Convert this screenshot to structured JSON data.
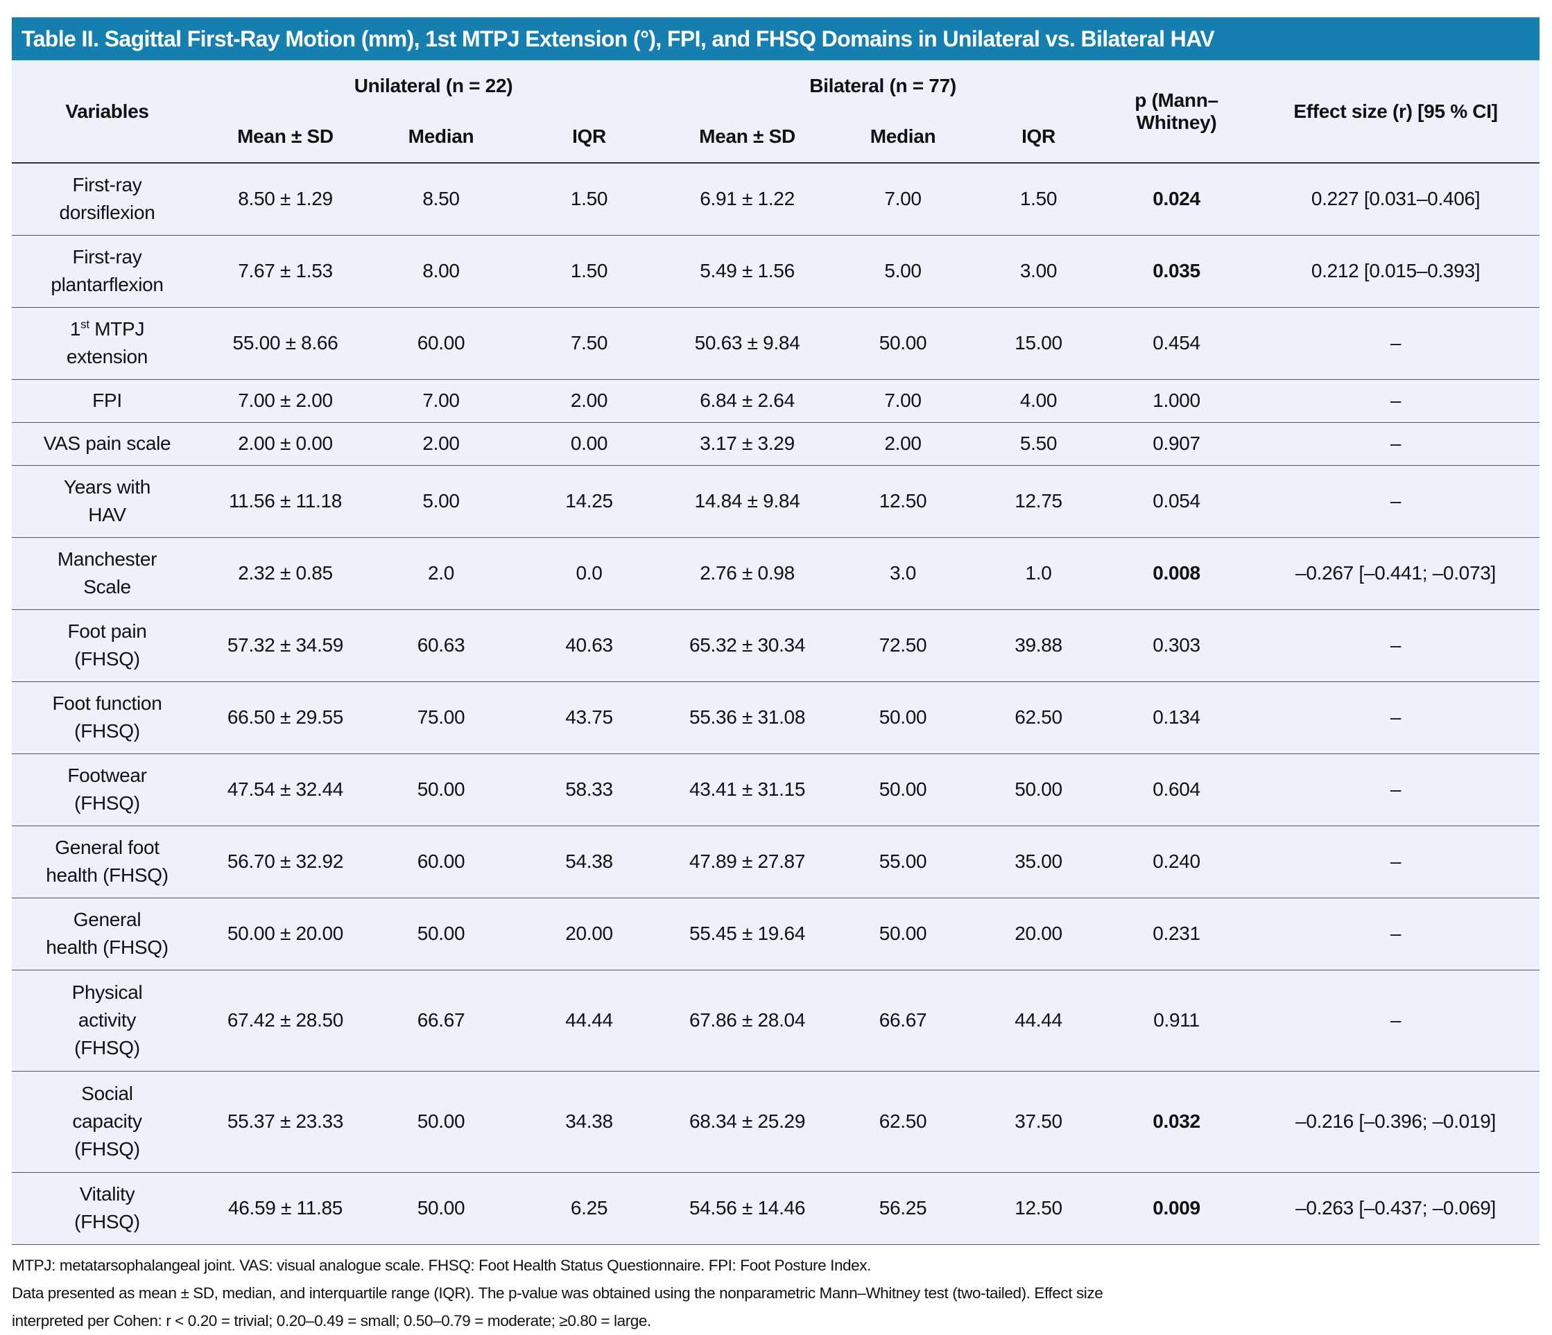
{
  "title": "Table II. Sagittal First-Ray Motion (mm), 1st MTPJ Extension (°), FPI, and FHSQ Domains in Unilateral vs. Bilateral HAV",
  "header": {
    "variables": "Variables",
    "unilateral": "Unilateral (n = 22)",
    "bilateral": "Bilateral (n = 77)",
    "p_line1": "p (Mann–",
    "p_line2": "Whitney)",
    "effect": "Effect size (r) [95 % CI]",
    "mean_sd": "Mean ± SD",
    "median": "Median",
    "iqr": "IQR"
  },
  "rows": [
    {
      "label": [
        "First-ray",
        "dorsiflexion"
      ],
      "u_mean": "8.50 ± 1.29",
      "u_median": "8.50",
      "u_iqr": "1.50",
      "b_mean": "6.91 ± 1.22",
      "b_median": "7.00",
      "b_iqr": "1.50",
      "p": "0.024",
      "p_bold": true,
      "effect": "0.227 [0.031–0.406]"
    },
    {
      "label": [
        "First-ray",
        "plantarflexion"
      ],
      "u_mean": "7.67 ± 1.53",
      "u_median": "8.00",
      "u_iqr": "1.50",
      "b_mean": "5.49 ± 1.56",
      "b_median": "5.00",
      "b_iqr": "3.00",
      "p": "0.035",
      "p_bold": true,
      "effect": "0.212 [0.015–0.393]"
    },
    {
      "label": [
        "1",
        "MTPJ",
        "extension"
      ],
      "ordinal_suffix": "st",
      "u_mean": "55.00 ± 8.66",
      "u_median": "60.00",
      "u_iqr": "7.50",
      "b_mean": "50.63 ± 9.84",
      "b_median": "50.00",
      "b_iqr": "15.00",
      "p": "0.454",
      "p_bold": false,
      "effect": "–"
    },
    {
      "label": [
        "FPI"
      ],
      "u_mean": "7.00 ± 2.00",
      "u_median": "7.00",
      "u_iqr": "2.00",
      "b_mean": "6.84 ± 2.64",
      "b_median": "7.00",
      "b_iqr": "4.00",
      "p": "1.000",
      "p_bold": false,
      "effect": "–"
    },
    {
      "label": [
        "VAS pain scale"
      ],
      "u_mean": "2.00 ± 0.00",
      "u_median": "2.00",
      "u_iqr": "0.00",
      "b_mean": "3.17 ± 3.29",
      "b_median": "2.00",
      "b_iqr": "5.50",
      "p": "0.907",
      "p_bold": false,
      "effect": "–"
    },
    {
      "label": [
        "Years with",
        "HAV"
      ],
      "u_mean": "11.56 ± 11.18",
      "u_median": "5.00",
      "u_iqr": "14.25",
      "b_mean": "14.84 ± 9.84",
      "b_median": "12.50",
      "b_iqr": "12.75",
      "p": "0.054",
      "p_bold": false,
      "effect": "–"
    },
    {
      "label": [
        "Manchester",
        "Scale"
      ],
      "u_mean": "2.32 ± 0.85",
      "u_median": "2.0",
      "u_iqr": "0.0",
      "b_mean": "2.76 ± 0.98",
      "b_median": "3.0",
      "b_iqr": "1.0",
      "p": "0.008",
      "p_bold": true,
      "effect": "–0.267 [–0.441; –0.073]"
    },
    {
      "label": [
        "Foot pain",
        "(FHSQ)"
      ],
      "u_mean": "57.32 ± 34.59",
      "u_median": "60.63",
      "u_iqr": "40.63",
      "b_mean": "65.32 ± 30.34",
      "b_median": "72.50",
      "b_iqr": "39.88",
      "p": "0.303",
      "p_bold": false,
      "effect": "–"
    },
    {
      "label": [
        "Foot function",
        "(FHSQ)"
      ],
      "u_mean": "66.50 ± 29.55",
      "u_median": "75.00",
      "u_iqr": "43.75",
      "b_mean": "55.36 ± 31.08",
      "b_median": "50.00",
      "b_iqr": "62.50",
      "p": "0.134",
      "p_bold": false,
      "effect": "–"
    },
    {
      "label": [
        "Footwear",
        "(FHSQ)"
      ],
      "u_mean": "47.54 ± 32.44",
      "u_median": "50.00",
      "u_iqr": "58.33",
      "b_mean": "43.41 ± 31.15",
      "b_median": "50.00",
      "b_iqr": "50.00",
      "p": "0.604",
      "p_bold": false,
      "effect": "–"
    },
    {
      "label": [
        "General foot",
        "health (FHSQ)"
      ],
      "u_mean": "56.70 ± 32.92",
      "u_median": "60.00",
      "u_iqr": "54.38",
      "b_mean": "47.89 ± 27.87",
      "b_median": "55.00",
      "b_iqr": "35.00",
      "p": "0.240",
      "p_bold": false,
      "effect": "–"
    },
    {
      "label": [
        "General",
        "health (FHSQ)"
      ],
      "u_mean": "50.00 ± 20.00",
      "u_median": "50.00",
      "u_iqr": "20.00",
      "b_mean": "55.45 ± 19.64",
      "b_median": "50.00",
      "b_iqr": "20.00",
      "p": "0.231",
      "p_bold": false,
      "effect": "–"
    },
    {
      "label": [
        "Physical",
        "activity",
        "(FHSQ)"
      ],
      "u_mean": "67.42 ± 28.50",
      "u_median": "66.67",
      "u_iqr": "44.44",
      "b_mean": "67.86 ± 28.04",
      "b_median": "66.67",
      "b_iqr": "44.44",
      "p": "0.911",
      "p_bold": false,
      "effect": "–"
    },
    {
      "label": [
        "Social",
        "capacity",
        "(FHSQ)"
      ],
      "u_mean": "55.37 ± 23.33",
      "u_median": "50.00",
      "u_iqr": "34.38",
      "b_mean": "68.34 ± 25.29",
      "b_median": "62.50",
      "b_iqr": "37.50",
      "p": "0.032",
      "p_bold": true,
      "effect": "–0.216 [–0.396; –0.019]"
    },
    {
      "label": [
        "Vitality",
        "(FHSQ)"
      ],
      "u_mean": "46.59 ± 11.85",
      "u_median": "50.00",
      "u_iqr": "6.25",
      "b_mean": "54.56 ± 14.46",
      "b_median": "56.25",
      "b_iqr": "12.50",
      "p": "0.009",
      "p_bold": true,
      "effect": "–0.263 [–0.437; –0.069]"
    }
  ],
  "footnotes": [
    "MTPJ: metatarsophalangeal joint. VAS: visual analogue scale. FHSQ: Foot Health Status Questionnaire. FPI: Foot Posture Index.",
    "Data presented as mean ± SD, median, and interquartile range (IQR). The p-value was obtained using the nonparametric Mann–Whitney test (two-tailed). Effect size",
    "interpreted per Cohen: r < 0.20 = trivial; 0.20–0.49 = small; 0.50–0.79 = moderate; ≥0.80 = large."
  ],
  "colors": {
    "title_bg": "#1580b0",
    "table_bg": "#edf1f9",
    "bold_significant": "#111111"
  }
}
